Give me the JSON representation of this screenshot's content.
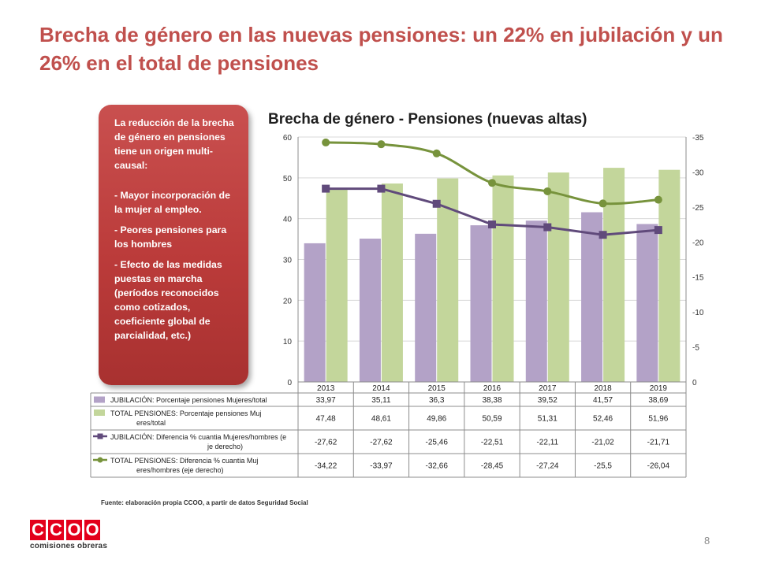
{
  "slide": {
    "title": "Brecha de género en las nuevas pensiones: un 22% en jubilación y un 26% en el total de pensiones",
    "page_number": "8",
    "source": "Fuente: elaboración propia CCOO, a partir de datos Seguridad Social",
    "logo_text": "CCOO",
    "logo_subtitle": "comisiones obreras",
    "logo_color": "#e3001b",
    "title_color": "#c0504d"
  },
  "callout": {
    "intro": "La reducción de la brecha de género en pensiones tiene un origen multi-causal:",
    "points": [
      "- Mayor incorporación de la mujer al empleo.",
      "-  Peores pensiones para los hombres",
      "- Efecto de las medidas puestas en marcha (períodos reconocidos como cotizados, coeficiente global de parcialidad, etc.)"
    ]
  },
  "chart_data": {
    "type": "bar",
    "title": "Brecha de género - Pensiones (nuevas altas)",
    "categories": [
      "2013",
      "2014",
      "2015",
      "2016",
      "2017",
      "2018",
      "2019"
    ],
    "y_left": {
      "min": 0,
      "max": 60,
      "ticks": [
        "0",
        "10",
        "20",
        "30",
        "40",
        "50",
        "60"
      ]
    },
    "y_right": {
      "min": -35,
      "max": 0,
      "reversed": true,
      "ticks": [
        "0",
        "-5",
        "-10",
        "-15",
        "-20",
        "-25",
        "-30",
        "-35"
      ]
    },
    "grid": true,
    "legend_placement": "data-table",
    "series": [
      {
        "name": "JUBILACIÓN: Porcentaje pensiones Mujeres/total",
        "type": "bar",
        "axis": "left",
        "color": "#b3a2c7",
        "values": [
          33.97,
          35.11,
          36.3,
          38.38,
          39.52,
          41.57,
          38.69
        ],
        "labels": [
          "33,97",
          "35,11",
          "36,3",
          "38,38",
          "39,52",
          "41,57",
          "38,69"
        ]
      },
      {
        "name": "TOTAL PENSIONES: Porcentaje pensiones Mujeres/total",
        "type": "bar",
        "axis": "left",
        "color": "#c3d69b",
        "values": [
          47.48,
          48.61,
          49.86,
          50.59,
          51.31,
          52.46,
          51.96
        ],
        "labels": [
          "47,48",
          "48,61",
          "49,86",
          "50,59",
          "51,31",
          "52,46",
          "51,96"
        ]
      },
      {
        "name": "JUBILACIÓN: Diferencia % cuantia Mujeres/hombres (eje derecho)",
        "type": "line",
        "marker": "square",
        "axis": "right",
        "color": "#604a7b",
        "values": [
          -27.62,
          -27.62,
          -25.46,
          -22.51,
          -22.11,
          -21.02,
          -21.71
        ],
        "labels": [
          "-27,62",
          "-27,62",
          "-25,46",
          "-22,51",
          "-22,11",
          "-21,02",
          "-21,71"
        ]
      },
      {
        "name": "TOTAL PENSIONES: Diferencia % cuantia Mujeres/hombres (eje derecho)",
        "type": "line",
        "marker": "circle",
        "smooth": true,
        "axis": "right",
        "color": "#77933c",
        "values": [
          -34.22,
          -33.97,
          -32.66,
          -28.45,
          -27.24,
          -25.5,
          -26.04
        ],
        "labels": [
          "-34,22",
          "-33,97",
          "-32,66",
          "-28,45",
          "-27,24",
          "-25,5",
          "-26,04"
        ]
      }
    ]
  }
}
